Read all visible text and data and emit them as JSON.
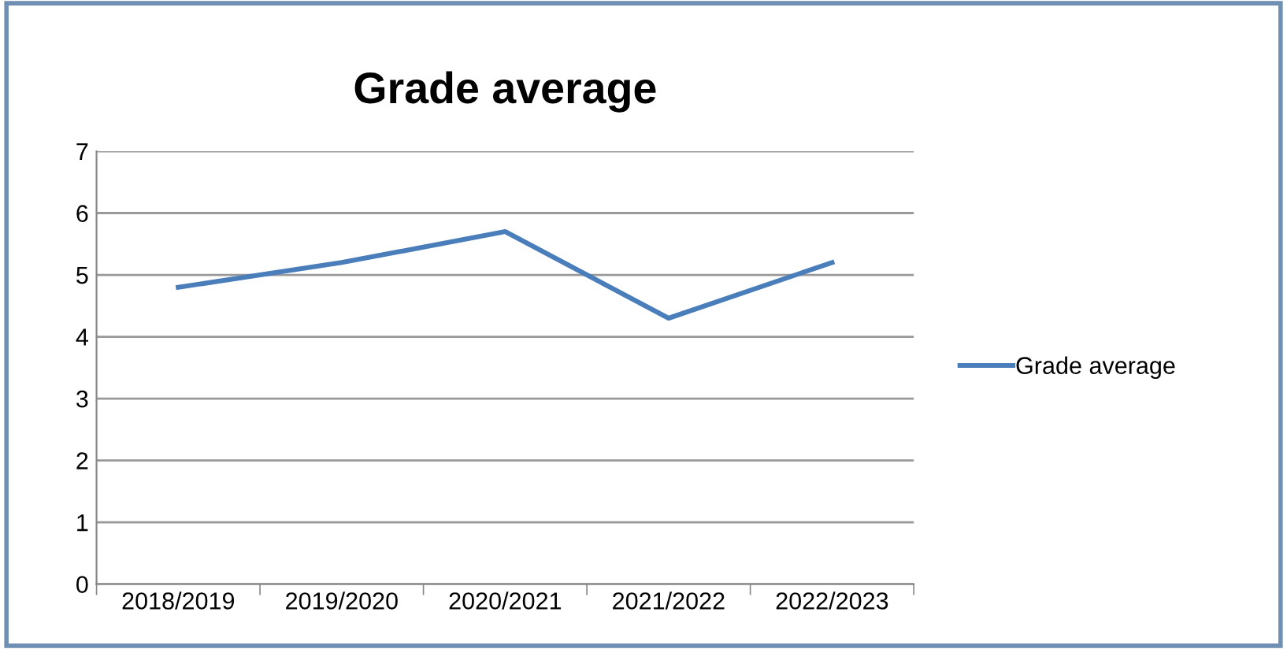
{
  "chart_data": {
    "type": "line",
    "title": "Grade average",
    "categories": [
      "2018/2019",
      "2019/2020",
      "2020/2021",
      "2021/2022",
      "2022/2023"
    ],
    "series": [
      {
        "name": "Grade average",
        "color": "#4a7ebb",
        "values": [
          4.8,
          5.2,
          5.7,
          4.3,
          5.2
        ]
      }
    ],
    "ylim": [
      0,
      7
    ],
    "yticks": [
      0,
      1,
      2,
      3,
      4,
      5,
      6,
      7
    ],
    "grid": "y",
    "legend": "right",
    "marker": "none",
    "line_style": "solid"
  }
}
